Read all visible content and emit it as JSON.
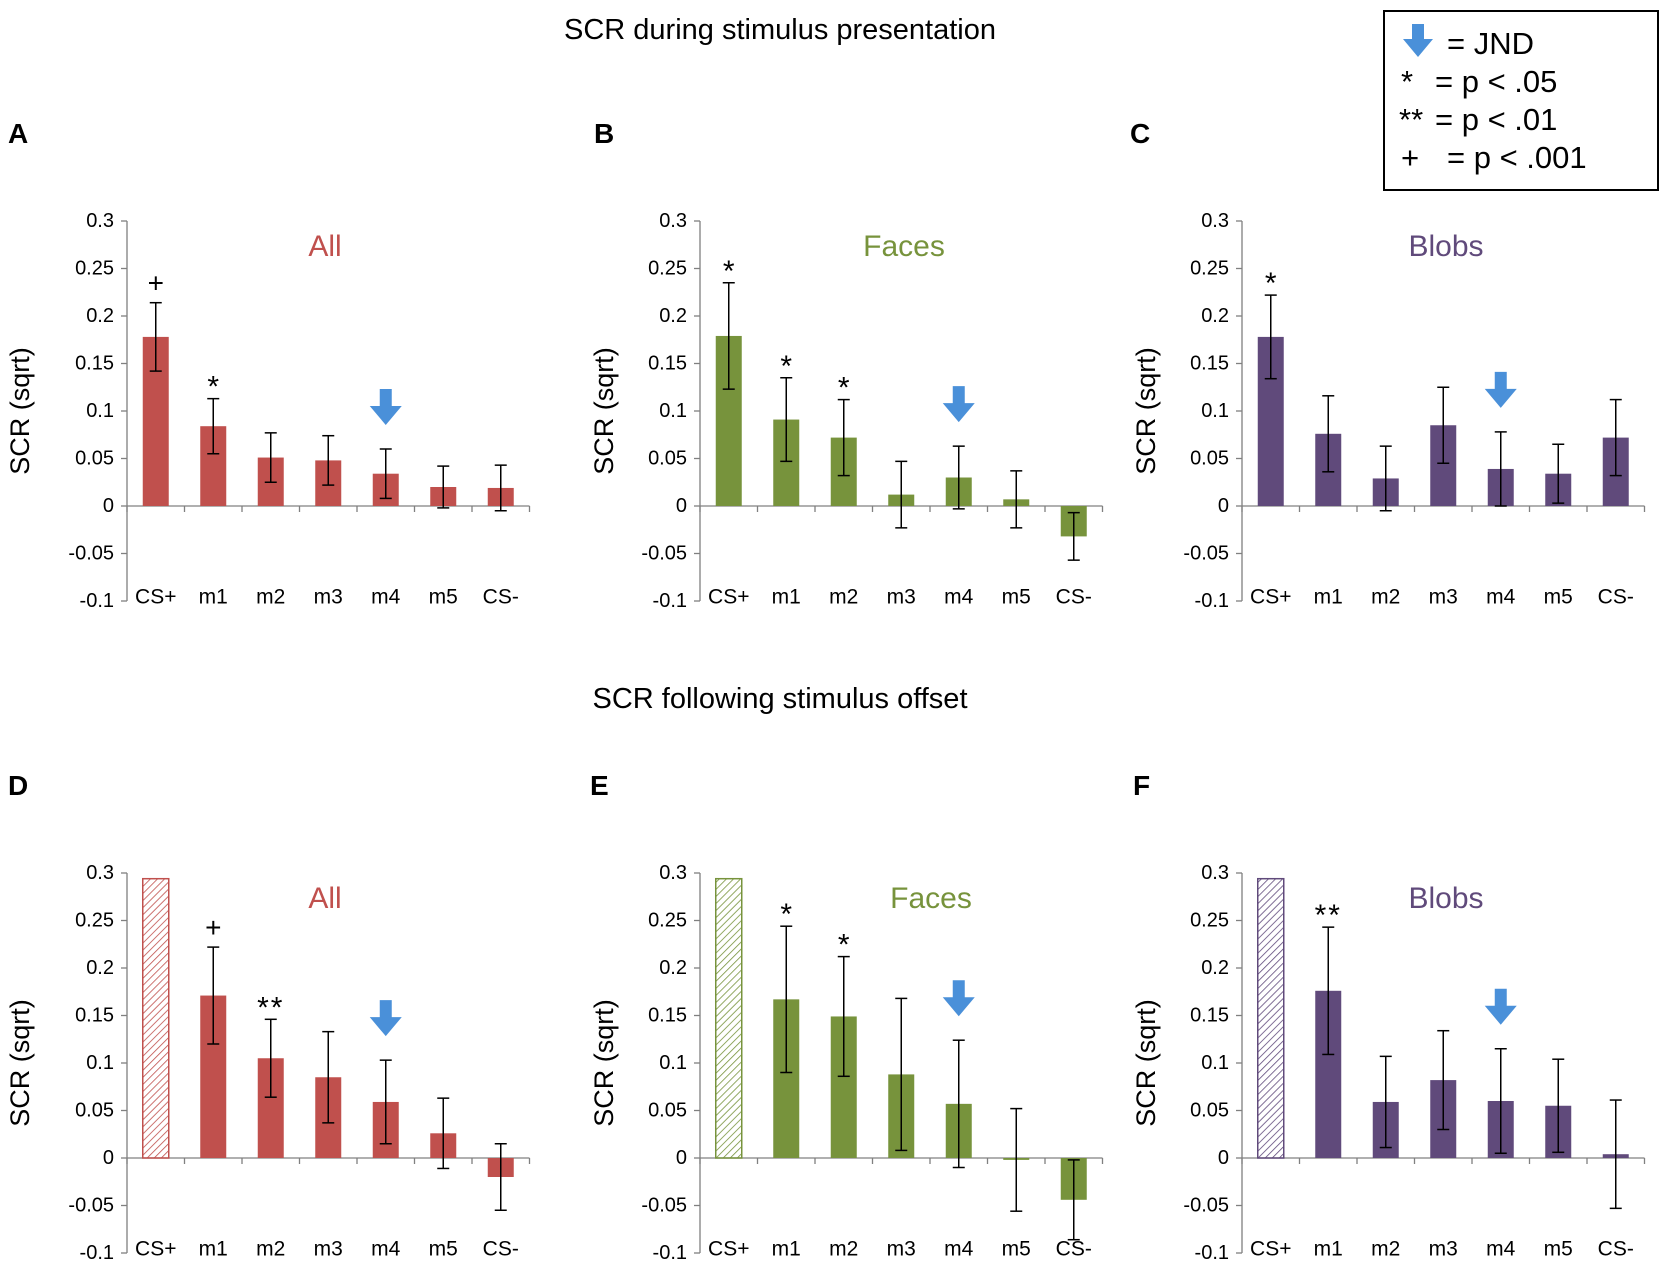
{
  "sections": [
    {
      "title": "SCR during stimulus presentation"
    },
    {
      "title": "SCR following stimulus offset"
    }
  ],
  "legend": {
    "entries": [
      {
        "symbol": "jnd-arrow",
        "label": "= JND"
      },
      {
        "symbol": "*",
        "label": "= p < .05"
      },
      {
        "symbol": "**",
        "label": "= p < .01"
      },
      {
        "symbol": "+",
        "label": "= p < .001"
      }
    ]
  },
  "colors": {
    "All": "#c0504d",
    "Faces": "#77933c",
    "Blobs": "#604a7b",
    "arrow": "#4a90d9"
  },
  "chart_data": [
    {
      "type": "bar",
      "panel": "A",
      "title": "All",
      "color": "#c0504d",
      "ylabel": "SCR (sqrt)",
      "ylim": [
        -0.1,
        0.3
      ],
      "yticks": [
        "0.3",
        "0.25",
        "0.2",
        "0.15",
        "0.1",
        "0.05",
        "0",
        "-0.05",
        "-0.1"
      ],
      "categories": [
        "CS+",
        "m1",
        "m2",
        "m3",
        "m4",
        "m5",
        "CS-"
      ],
      "values": [
        0.178,
        0.084,
        0.051,
        0.048,
        0.034,
        0.02,
        0.019
      ],
      "errors": [
        0.036,
        0.029,
        0.026,
        0.026,
        0.026,
        0.022,
        0.024
      ],
      "hatched": [
        false,
        false,
        false,
        false,
        false,
        false,
        false
      ],
      "significance": [
        "+",
        "*",
        "",
        "",
        "",
        "",
        ""
      ],
      "jnd_index": 4
    },
    {
      "type": "bar",
      "panel": "B",
      "title": "Faces",
      "color": "#77933c",
      "ylabel": "SCR (sqrt)",
      "ylim": [
        -0.1,
        0.3
      ],
      "yticks": [
        "0.3",
        "0.25",
        "0.2",
        "0.15",
        "0.1",
        "0.05",
        "0",
        "-0.05",
        "-0.1"
      ],
      "categories": [
        "CS+",
        "m1",
        "m2",
        "m3",
        "m4",
        "m5",
        "CS-"
      ],
      "values": [
        0.179,
        0.091,
        0.072,
        0.012,
        0.03,
        0.007,
        -0.032
      ],
      "errors": [
        0.056,
        0.044,
        0.04,
        0.035,
        0.033,
        0.03,
        0.025
      ],
      "hatched": [
        false,
        false,
        false,
        false,
        false,
        false,
        false
      ],
      "significance": [
        "*",
        "*",
        "*",
        "",
        "",
        "",
        ""
      ],
      "jnd_index": 4
    },
    {
      "type": "bar",
      "panel": "C",
      "title": "Blobs",
      "color": "#604a7b",
      "ylabel": "SCR (sqrt)",
      "ylim": [
        -0.1,
        0.3
      ],
      "yticks": [
        "0.3",
        "0.25",
        "0.2",
        "0.15",
        "0.1",
        "0.05",
        "0",
        "-0.05",
        "-0.1"
      ],
      "categories": [
        "CS+",
        "m1",
        "m2",
        "m3",
        "m4",
        "m5",
        "CS-"
      ],
      "values": [
        0.178,
        0.076,
        0.029,
        0.085,
        0.039,
        0.034,
        0.072
      ],
      "errors": [
        0.044,
        0.04,
        0.034,
        0.04,
        0.039,
        0.031,
        0.04
      ],
      "hatched": [
        false,
        false,
        false,
        false,
        false,
        false,
        false
      ],
      "significance": [
        "*",
        "",
        "",
        "",
        "",
        "",
        ""
      ],
      "jnd_index": 4
    },
    {
      "type": "bar",
      "panel": "D",
      "title": "All",
      "color": "#c0504d",
      "ylabel": "SCR (sqrt)",
      "ylim": [
        -0.1,
        0.3
      ],
      "yticks": [
        "0.3",
        "0.25",
        "0.2",
        "0.15",
        "0.1",
        "0.05",
        "0",
        "-0.05",
        "-0.1"
      ],
      "categories": [
        "CS+",
        "m1",
        "m2",
        "m3",
        "m4",
        "m5",
        "CS-"
      ],
      "values": [
        0.294,
        0.171,
        0.105,
        0.085,
        0.059,
        0.026,
        -0.02
      ],
      "errors": [
        0,
        0.051,
        0.041,
        0.048,
        0.044,
        0.037,
        0.035
      ],
      "hatched": [
        true,
        false,
        false,
        false,
        false,
        false,
        false
      ],
      "significance": [
        "",
        "+",
        "**",
        "",
        "",
        "",
        ""
      ],
      "jnd_index": 4
    },
    {
      "type": "bar",
      "panel": "E",
      "title": "Faces",
      "color": "#77933c",
      "ylabel": "SCR (sqrt)",
      "ylim": [
        -0.1,
        0.3
      ],
      "yticks": [
        "0.3",
        "0.25",
        "0.2",
        "0.15",
        "0.1",
        "0.05",
        "0",
        "-0.05",
        "-0.1"
      ],
      "categories": [
        "CS+",
        "m1",
        "m2",
        "m3",
        "m4",
        "m5",
        "CS-"
      ],
      "values": [
        0.294,
        0.167,
        0.149,
        0.088,
        0.057,
        -0.002,
        -0.044
      ],
      "errors": [
        0,
        0.077,
        0.063,
        0.08,
        0.067,
        0.054,
        0.042
      ],
      "hatched": [
        true,
        false,
        false,
        false,
        false,
        false,
        false
      ],
      "significance": [
        "",
        "*",
        "*",
        "",
        "",
        "",
        ""
      ],
      "jnd_index": 4
    },
    {
      "type": "bar",
      "panel": "F",
      "title": "Blobs",
      "color": "#604a7b",
      "ylabel": "SCR (sqrt)",
      "ylim": [
        -0.1,
        0.3
      ],
      "yticks": [
        "0.3",
        "0.25",
        "0.2",
        "0.15",
        "0.1",
        "0.05",
        "0",
        "-0.05",
        "-0.1"
      ],
      "categories": [
        "CS+",
        "m1",
        "m2",
        "m3",
        "m4",
        "m5",
        "CS-"
      ],
      "values": [
        0.294,
        0.176,
        0.059,
        0.082,
        0.06,
        0.055,
        0.004
      ],
      "errors": [
        0,
        0.067,
        0.048,
        0.052,
        0.055,
        0.049,
        0.057
      ],
      "hatched": [
        true,
        false,
        false,
        false,
        false,
        false,
        false
      ],
      "significance": [
        "",
        "**",
        "",
        "",
        "",
        "",
        ""
      ],
      "jnd_index": 4
    }
  ]
}
